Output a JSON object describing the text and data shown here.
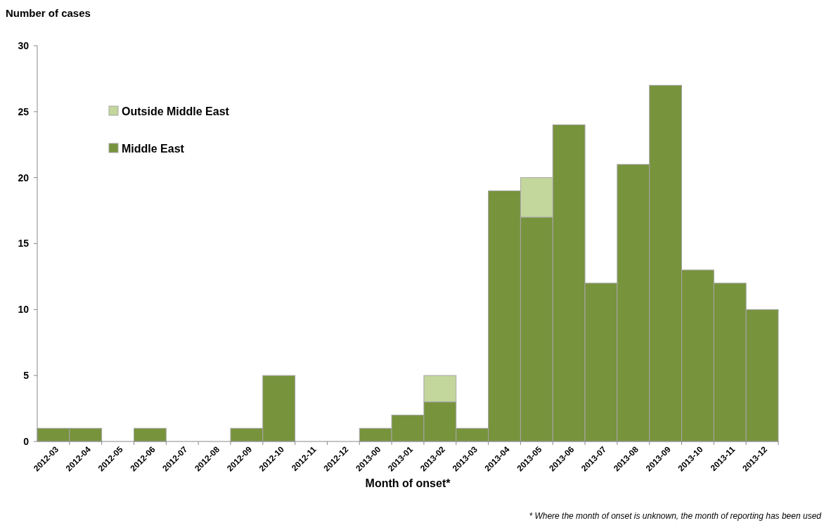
{
  "chart_data": {
    "type": "bar",
    "stacked": true,
    "ylabel": "Number of cases",
    "xlabel": "Month of onset*",
    "categories": [
      "2012-03",
      "2012-04",
      "2012-05",
      "2012-06",
      "2012-07",
      "2012-08",
      "2012-09",
      "2012-10",
      "2012-11",
      "2012-12",
      "2013-00",
      "2013-01",
      "2013-02",
      "2013-03",
      "2013-04",
      "2013-05",
      "2013-06",
      "2013-07",
      "2013-08",
      "2013-09",
      "2013-10",
      "2013-11",
      "2013-12"
    ],
    "series": [
      {
        "name": "Middle East",
        "color": "#77933c",
        "values": [
          1,
          1,
          0,
          1,
          0,
          0,
          1,
          5,
          0,
          0,
          1,
          2,
          3,
          1,
          19,
          17,
          24,
          12,
          21,
          27,
          13,
          12,
          10
        ]
      },
      {
        "name": "Outside Middle East",
        "color": "#c3d69b",
        "values": [
          0,
          0,
          0,
          0,
          0,
          0,
          0,
          0,
          0,
          0,
          0,
          0,
          2,
          0,
          0,
          3,
          0,
          0,
          0,
          0,
          0,
          0,
          0
        ]
      }
    ],
    "ylim": [
      0,
      30
    ],
    "yticks": [
      0,
      5,
      10,
      15,
      20,
      25,
      30
    ],
    "legend": "top left",
    "annotations": [
      "* Where the month of onset is unknown, the month of reporting has been used"
    ]
  }
}
